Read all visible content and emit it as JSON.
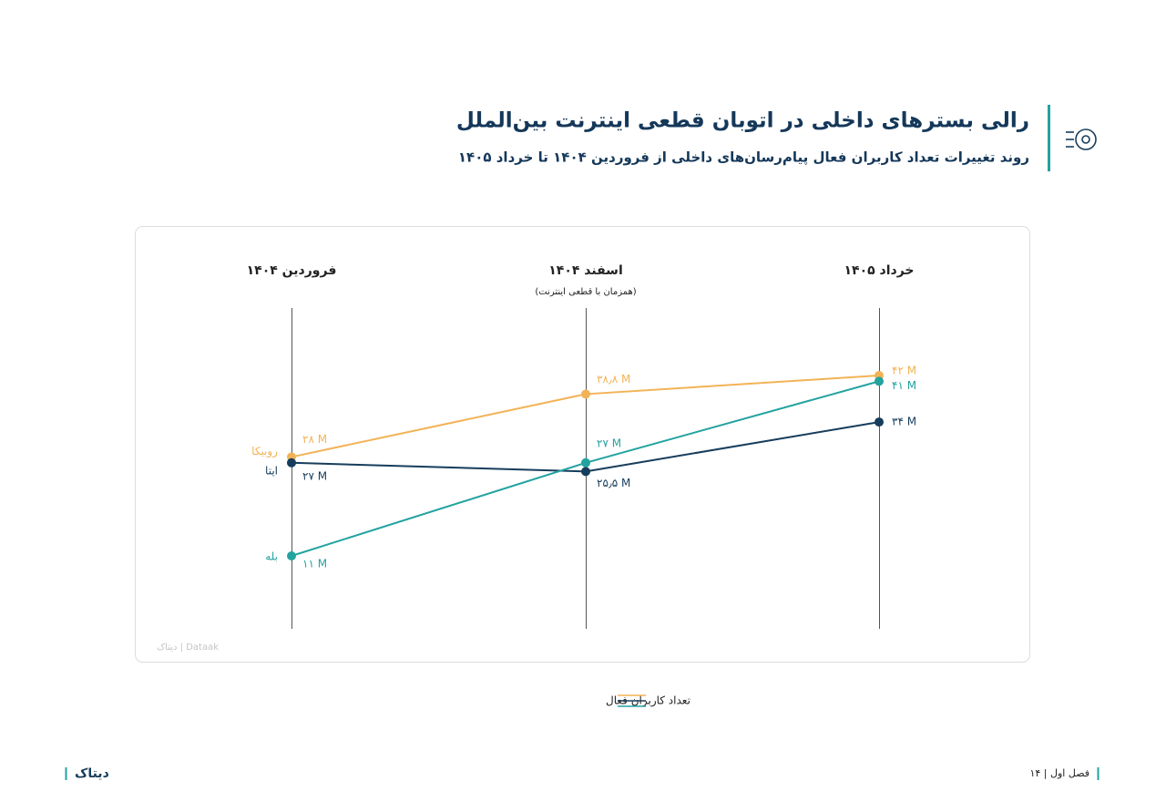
{
  "chart_data": {
    "type": "slope",
    "title": "رالی بسترهای داخلی در اتوبان قطعی اینترنت بین‌الملل",
    "subtitle": "روند تغییرات تعداد کاربران فعال پیام‌رسان‌های داخلی از فروردین ۱۴۰۴ تا خرداد ۱۴۰۵",
    "categories": [
      "فروردین ۱۴۰۴",
      "اسفند ۱۴۰۴",
      "خرداد ۱۴۰۵"
    ],
    "annotations": [
      {
        "x": "اسفند ۱۴۰۴",
        "text": "(همزمان با قطعی اینترنت)"
      }
    ],
    "series": [
      {
        "name": "روبیکا",
        "color": "#f2b356",
        "values": [
          28,
          38.8,
          42
        ],
        "value_labels": [
          "۲۸ M",
          "۳۸٫۸ M",
          "۴۲ M"
        ]
      },
      {
        "name": "ایتا",
        "color": "#173d5c",
        "values": [
          27,
          25.5,
          34
        ],
        "value_labels": [
          "۲۷ M",
          "۲۵٫۵ M",
          "۳۴ M"
        ]
      },
      {
        "name": "بله",
        "color": "#22a3a0",
        "values": [
          11,
          27,
          41
        ],
        "value_labels": [
          "۱۱ M",
          "۲۷ M",
          "۴۱ M"
        ]
      }
    ],
    "legend": "تعداد کاربران فعال",
    "watermark": "دیتاک | Dataak"
  },
  "footer": {
    "logo": "دیتاک",
    "page": "۱۴ | فصل اول"
  }
}
